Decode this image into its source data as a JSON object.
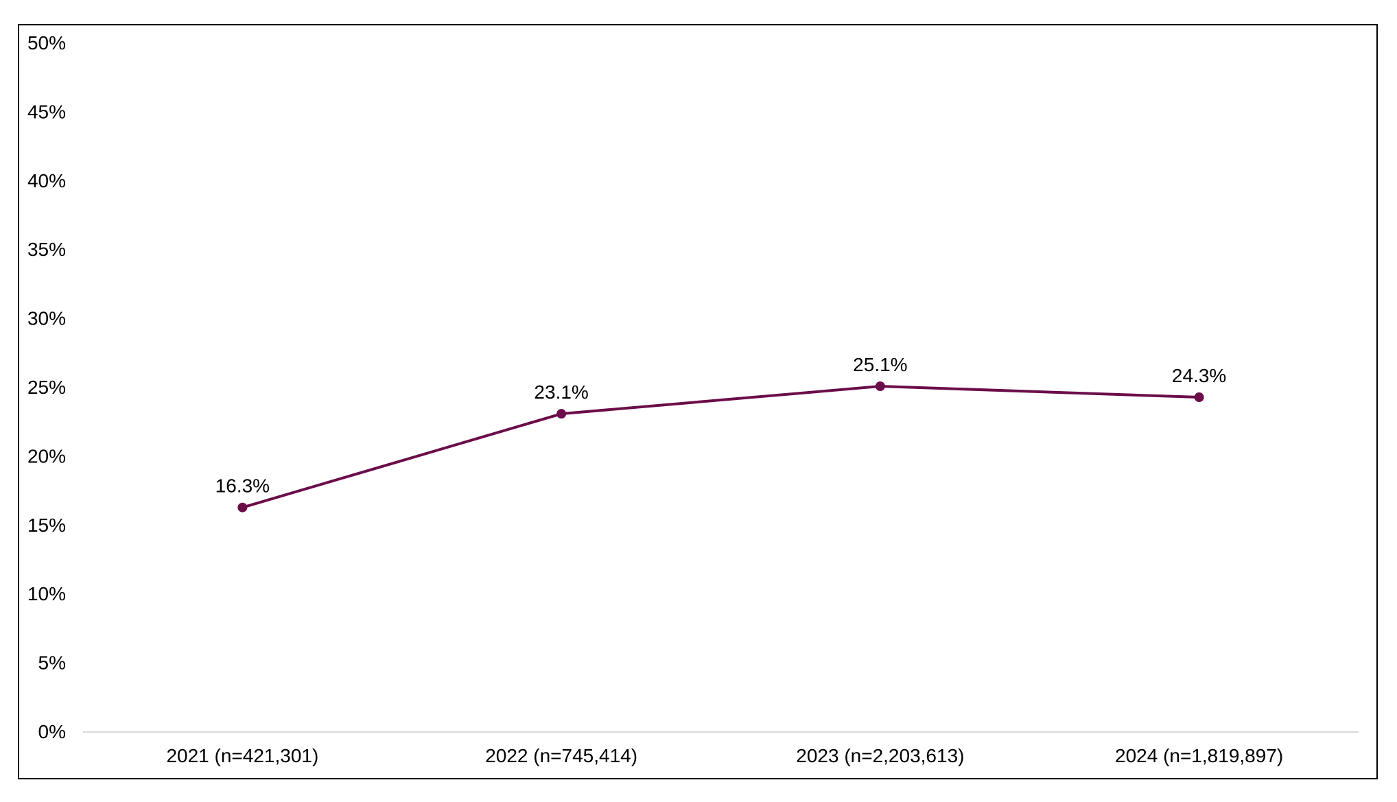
{
  "chart_data": {
    "type": "line",
    "title": "",
    "xlabel": "",
    "ylabel": "",
    "categories": [
      "2021 (n=421,301)",
      "2022 (n=745,414)",
      "2023 (n=2,203,613)",
      "2024 (n=1,819,897)"
    ],
    "series": [
      {
        "values": [
          16.3,
          23.1,
          25.1,
          24.3
        ],
        "color": "#6b0d4a"
      }
    ],
    "data_labels": [
      "16.3%",
      "23.1%",
      "25.1%",
      "24.3%"
    ],
    "ylim": [
      0,
      50
    ],
    "y_ticks": [
      0,
      5,
      10,
      15,
      20,
      25,
      30,
      35,
      40,
      45,
      50
    ],
    "y_tick_labels": [
      "0%",
      "5%",
      "10%",
      "15%",
      "20%",
      "25%",
      "30%",
      "35%",
      "40%",
      "45%",
      "50%"
    ],
    "grid": false,
    "legend": "none"
  }
}
